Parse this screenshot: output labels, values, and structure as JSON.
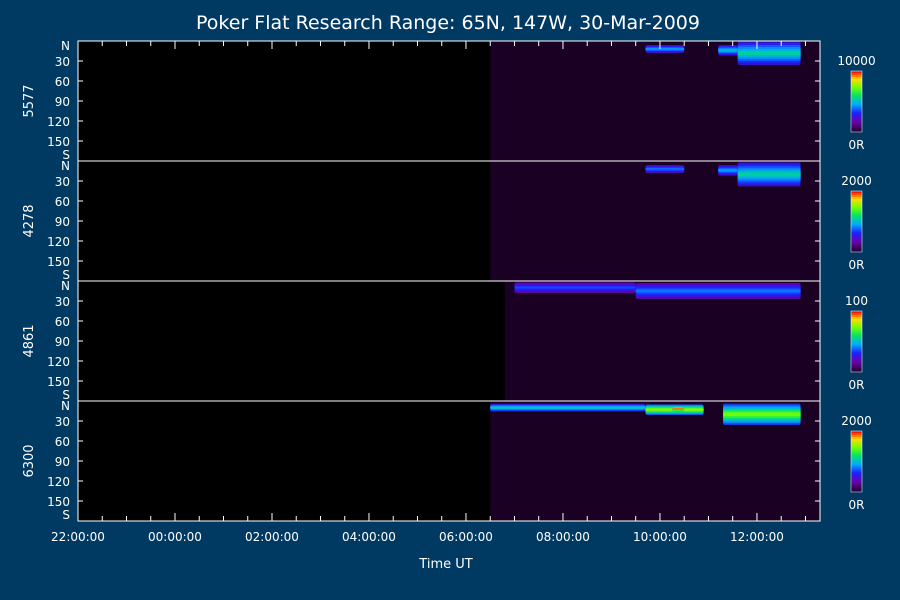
{
  "chart_data": {
    "type": "heatmap",
    "title": "Poker Flat Research Range: 65N, 147W, 30-Mar-2009",
    "xlabel": "Time UT",
    "x_range_hours": [
      -2.0,
      13.3
    ],
    "x_ticks": [
      "22:00:00",
      "00:00:00",
      "02:00:00",
      "04:00:00",
      "06:00:00",
      "08:00:00",
      "10:00:00",
      "12:00:00"
    ],
    "x_tick_hours": [
      -2,
      0,
      2,
      4,
      6,
      8,
      10,
      12
    ],
    "y_range_deg": [
      0,
      180
    ],
    "y_tick_labels": [
      "N",
      "30",
      "60",
      "90",
      "120",
      "150",
      "S"
    ],
    "y_tick_values": [
      0,
      30,
      60,
      90,
      120,
      150,
      180
    ],
    "data_start_hour": 6.5,
    "panels": [
      {
        "wavelength": "5577",
        "colorbar_max": "10000",
        "colorbar_min": "0R",
        "data_start_hour": 6.5,
        "features": [
          {
            "t0": 9.7,
            "t1": 10.5,
            "lat": 12,
            "spread": 6,
            "intensity": 0.45
          },
          {
            "t0": 11.2,
            "t1": 11.6,
            "lat": 14,
            "spread": 8,
            "intensity": 0.5
          },
          {
            "t0": 11.6,
            "t1": 12.9,
            "lat": 18,
            "spread": 18,
            "intensity": 0.55
          }
        ]
      },
      {
        "wavelength": "4278",
        "colorbar_max": "2000",
        "colorbar_min": "0R",
        "data_start_hour": 6.5,
        "features": [
          {
            "t0": 9.7,
            "t1": 10.5,
            "lat": 12,
            "spread": 6,
            "intensity": 0.4
          },
          {
            "t0": 11.2,
            "t1": 11.6,
            "lat": 14,
            "spread": 8,
            "intensity": 0.45
          },
          {
            "t0": 11.6,
            "t1": 12.9,
            "lat": 20,
            "spread": 18,
            "intensity": 0.55
          }
        ]
      },
      {
        "wavelength": "4861",
        "colorbar_max": "100",
        "colorbar_min": "0R",
        "data_start_hour": 6.8,
        "features": [
          {
            "t0": 7.0,
            "t1": 9.5,
            "lat": 10,
            "spread": 8,
            "intensity": 0.35
          },
          {
            "t0": 9.5,
            "t1": 12.9,
            "lat": 15,
            "spread": 12,
            "intensity": 0.4
          }
        ]
      },
      {
        "wavelength": "6300",
        "colorbar_max": "2000",
        "colorbar_min": "0R",
        "data_start_hour": 6.5,
        "features": [
          {
            "t0": 6.5,
            "t1": 9.7,
            "lat": 10,
            "spread": 6,
            "intensity": 0.55
          },
          {
            "t0": 9.7,
            "t1": 10.9,
            "lat": 13,
            "spread": 8,
            "intensity": 0.8
          },
          {
            "t0": 10.25,
            "t1": 10.5,
            "lat": 12,
            "spread": 4,
            "intensity": 1.0
          },
          {
            "t0": 11.3,
            "t1": 12.9,
            "lat": 20,
            "spread": 16,
            "intensity": 0.75
          }
        ]
      }
    ]
  }
}
